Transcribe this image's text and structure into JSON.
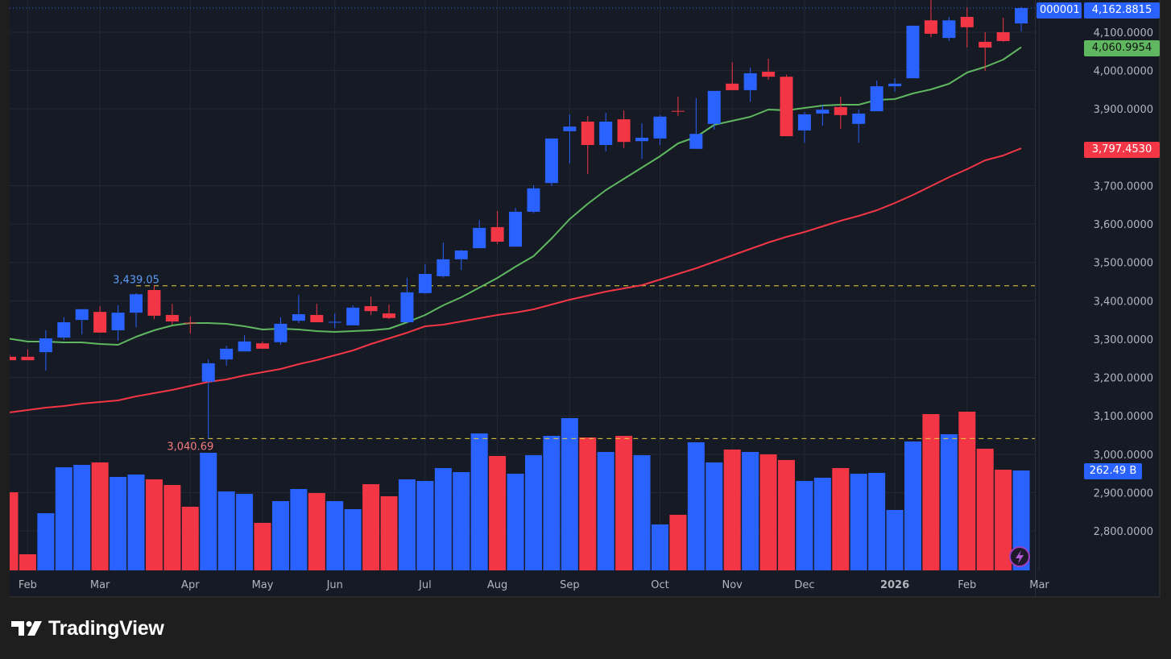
{
  "symbol_tag": "000001",
  "last_price_tag": "4,162.8815",
  "sma_short_tag": "4,060.9954",
  "sma_long_tag": "3,797.4530",
  "volume_tag": "262.49 B",
  "brand": "TradingView",
  "colors": {
    "up": "#2962ff",
    "down": "#f23645",
    "sma_short": "#5fb760",
    "sma_long": "#f23645",
    "level": "#e6d23c",
    "bg": "#161a25",
    "grid": "#242833"
  },
  "chart_data": {
    "type": "candlestick",
    "ylim": [
      2730,
      4180
    ],
    "yticks": [
      2800,
      2900,
      3000,
      3100,
      3200,
      3300,
      3400,
      3500,
      3600,
      3700,
      3900,
      4000,
      4100
    ],
    "ytick_labels": [
      "2,800.0000",
      "2,900.0000",
      "3,000.0000",
      "3,100.0000",
      "3,200.0000",
      "3,300.0000",
      "3,400.0000",
      "3,500.0000",
      "3,600.0000",
      "3,700.0000",
      "3,900.0000",
      "4,000.0000",
      "4,100.0000"
    ],
    "xticks": [
      {
        "label": "Feb",
        "index": 1,
        "bold": false
      },
      {
        "label": "Mar",
        "index": 5,
        "bold": false
      },
      {
        "label": "Apr",
        "index": 10,
        "bold": false
      },
      {
        "label": "May",
        "index": 14,
        "bold": false
      },
      {
        "label": "Jun",
        "index": 18,
        "bold": false
      },
      {
        "label": "Jul",
        "index": 23,
        "bold": false
      },
      {
        "label": "Aug",
        "index": 27,
        "bold": false
      },
      {
        "label": "Sep",
        "index": 31,
        "bold": false
      },
      {
        "label": "Oct",
        "index": 36,
        "bold": false
      },
      {
        "label": "Nov",
        "index": 40,
        "bold": false
      },
      {
        "label": "Dec",
        "index": 44,
        "bold": false
      },
      {
        "label": "2026",
        "index": 49,
        "bold": true
      },
      {
        "label": "Feb",
        "index": 53,
        "bold": false
      },
      {
        "label": "Mar",
        "index": 57,
        "bold": false
      }
    ],
    "levels": [
      {
        "label": "3,439.05",
        "value": 3439.05,
        "from_index": 7,
        "kind": "high"
      },
      {
        "label": "3,040.69",
        "value": 3040.69,
        "from_index": 10,
        "kind": "low"
      }
    ],
    "last_price": 4162.8815,
    "candles": [
      [
        3254,
        3259,
        3245,
        3245
      ],
      [
        3254,
        3273,
        3245,
        3245
      ],
      [
        3266,
        3323,
        3218,
        3302
      ],
      [
        3304,
        3357,
        3298,
        3344
      ],
      [
        3350,
        3378,
        3312,
        3378
      ],
      [
        3371,
        3386,
        3317,
        3317
      ],
      [
        3323,
        3388,
        3296,
        3369
      ],
      [
        3369,
        3420,
        3331,
        3417
      ],
      [
        3428,
        3439.05,
        3352,
        3361
      ],
      [
        3363,
        3392,
        3338,
        3346
      ],
      [
        3343,
        3359,
        3315,
        3341
      ],
      [
        3189,
        3247,
        3040.69,
        3237
      ],
      [
        3247,
        3283,
        3231,
        3275
      ],
      [
        3268,
        3310,
        3268,
        3294
      ],
      [
        3289,
        3294,
        3275,
        3275
      ],
      [
        3292,
        3357,
        3285,
        3340
      ],
      [
        3348,
        3415,
        3342,
        3365
      ],
      [
        3363,
        3392,
        3344,
        3344
      ],
      [
        3344,
        3367,
        3329,
        3345
      ],
      [
        3336,
        3388,
        3336,
        3382
      ],
      [
        3386,
        3411,
        3363,
        3373
      ],
      [
        3367,
        3390,
        3352,
        3355
      ],
      [
        3344,
        3460,
        3344,
        3422
      ],
      [
        3420,
        3495,
        3418,
        3470
      ],
      [
        3464,
        3552,
        3460,
        3508
      ],
      [
        3508,
        3533,
        3480,
        3531
      ],
      [
        3537,
        3611,
        3537,
        3590
      ],
      [
        3592,
        3634,
        3548,
        3554
      ],
      [
        3541,
        3642,
        3541,
        3632
      ],
      [
        3632,
        3701,
        3628,
        3693
      ],
      [
        3707,
        3823,
        3699,
        3823
      ],
      [
        3842,
        3886,
        3758,
        3854
      ],
      [
        3867,
        3882,
        3730,
        3806
      ],
      [
        3806,
        3890,
        3789,
        3867
      ],
      [
        3873,
        3896,
        3798,
        3814
      ],
      [
        3816,
        3863,
        3770,
        3825
      ],
      [
        3823,
        3884,
        3806,
        3880
      ],
      [
        3895,
        3932,
        3882,
        3893
      ],
      [
        3796,
        3928,
        3796,
        3835
      ],
      [
        3861,
        3947,
        3846,
        3947
      ],
      [
        3966,
        4022,
        3949,
        3949
      ],
      [
        3949,
        4008,
        3919,
        3993
      ],
      [
        3997,
        4031,
        3976,
        3984
      ],
      [
        3984,
        3989,
        3829,
        3829
      ],
      [
        3844,
        3892,
        3812,
        3886
      ],
      [
        3888,
        3911,
        3856,
        3898
      ],
      [
        3905,
        3932,
        3848,
        3884
      ],
      [
        3861,
        3898,
        3812,
        3888
      ],
      [
        3894,
        3974,
        3894,
        3959
      ],
      [
        3959,
        3980,
        3945,
        3966
      ],
      [
        3980,
        4117,
        3980,
        4117
      ],
      [
        4131,
        4185,
        4087,
        4096
      ],
      [
        4085,
        4140,
        4077,
        4131
      ],
      [
        4140,
        4165,
        4060,
        4113
      ],
      [
        4075,
        4100,
        3999,
        4060
      ],
      [
        4100,
        4138,
        4075,
        4077
      ],
      [
        4123,
        4166,
        4102,
        4162.8815
      ]
    ],
    "candle_fields": [
      "open",
      "high",
      "low",
      "close"
    ],
    "volume_unit": "B",
    "volume": [
      205.3,
      42.3,
      150.3,
      271,
      277.3,
      283.7,
      245.6,
      251.9,
      239.2,
      224.4,
      167.2,
      309.1,
      207.5,
      201.1,
      124.9,
      182.1,
      213.8,
      203.2,
      182.1,
      160.9,
      226.5,
      194.8,
      239.2,
      235,
      268.9,
      258.3,
      359.9,
      300.6,
      254,
      302.7,
      353.5,
      400.1,
      349.3,
      311.2,
      353.5,
      302.7,
      120.7,
      146.1,
      336.6,
      283.7,
      317.6,
      311.2,
      304.8,
      290,
      235,
      243.5,
      268.9,
      254,
      256.2,
      158.8,
      338.7,
      410.7,
      357.8,
      417,
      319.7,
      264.6,
      262.49
    ],
    "series": [
      {
        "name": "SMA short",
        "values": [
          3301,
          3293.6,
          3293.6,
          3291.5,
          3291.5,
          3287.3,
          3285.2,
          3306.2,
          3323,
          3335.6,
          3341.9,
          3341.9,
          3339.8,
          3333.5,
          3325.1,
          3327.2,
          3325.1,
          3320.9,
          3318.8,
          3320.9,
          3323,
          3327.2,
          3344,
          3362.9,
          3388.1,
          3409.1,
          3434.3,
          3459.5,
          3488.9,
          3516.2,
          3562.4,
          3612.8,
          3652.7,
          3688.4,
          3717.8,
          3747.2,
          3776.6,
          3810.2,
          3827,
          3858.5,
          3869,
          3879.5,
          3898.4,
          3896.3,
          3902.6,
          3908.9,
          3911,
          3911,
          3923.6,
          3925.7,
          3940.4,
          3950.9,
          3965.6,
          3995,
          4009.7,
          4028.6,
          4060.9954
        ]
      },
      {
        "name": "SMA long",
        "values": [
          3109,
          3115.1,
          3121.4,
          3125.6,
          3131.9,
          3136.1,
          3140.3,
          3150.8,
          3159.2,
          3167.6,
          3178.1,
          3188.6,
          3194.9,
          3205.4,
          3213.8,
          3222.2,
          3234.8,
          3245.3,
          3257.9,
          3270.5,
          3287.3,
          3302,
          3316.7,
          3333.5,
          3337.7,
          3346.1,
          3354.5,
          3362.9,
          3369.2,
          3377.6,
          3390.2,
          3402.8,
          3413.3,
          3423.8,
          3432.2,
          3440.6,
          3455.3,
          3470,
          3484.7,
          3501.5,
          3518.3,
          3535.1,
          3551.9,
          3566.6,
          3579.2,
          3593.9,
          3608.6,
          3621.2,
          3635.9,
          3654.8,
          3675.8,
          3698.9,
          3722,
          3743,
          3766.1,
          3778.7,
          3797.453
        ]
      }
    ]
  }
}
